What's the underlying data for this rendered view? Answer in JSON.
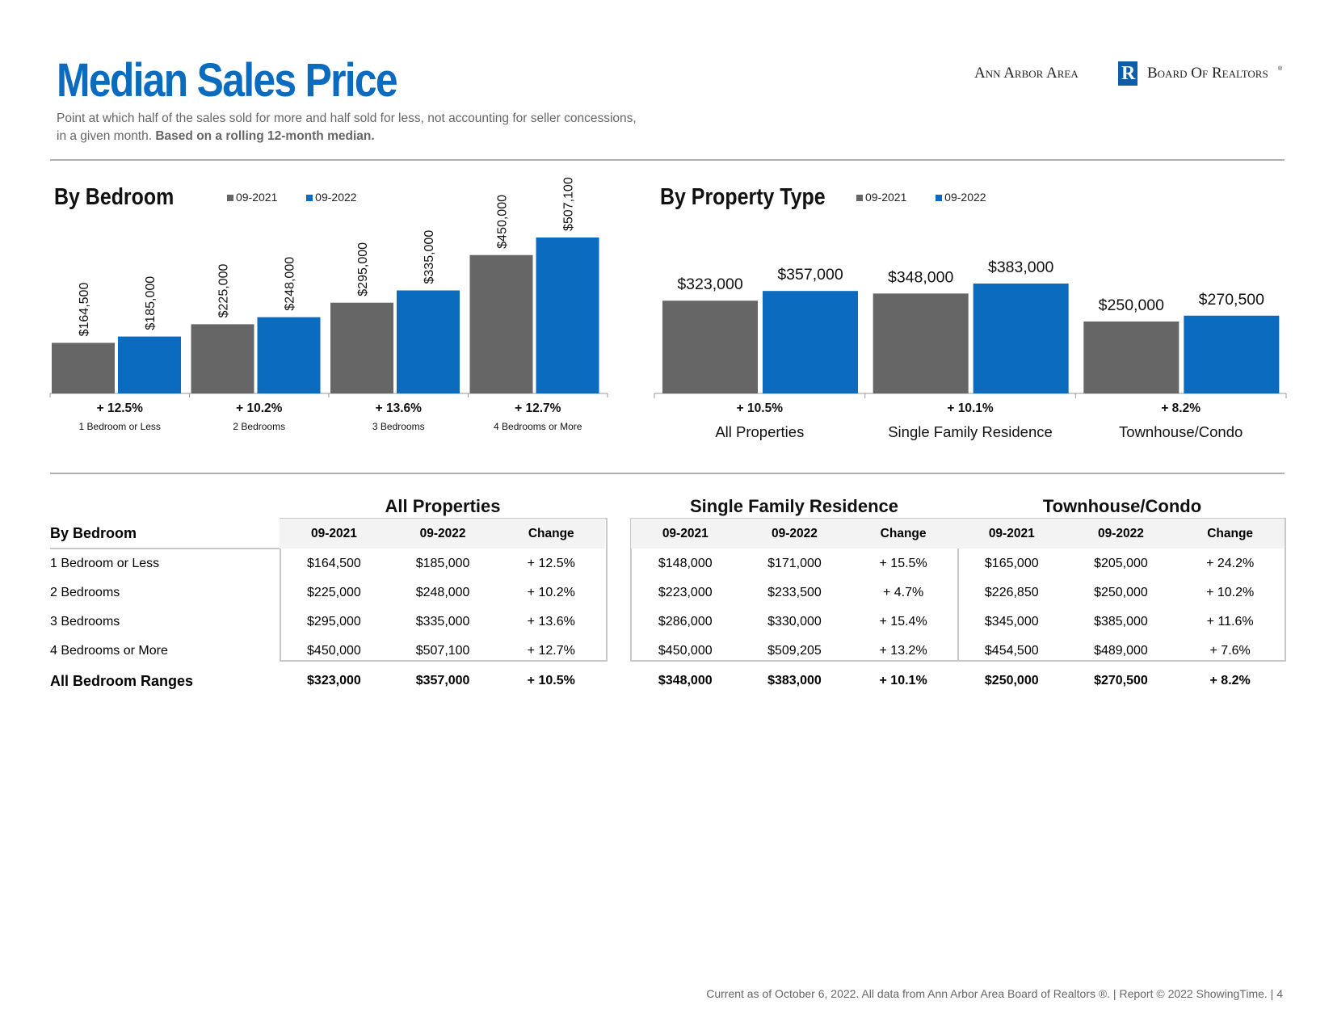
{
  "header": {
    "title": "Median Sales Price",
    "subtitle_line1": "Point at which half of the sales sold for more and half sold for less, not accounting for seller concessions,",
    "subtitle_line2_plain": "in a given month. ",
    "subtitle_line2_bold": "Based on a rolling 12-month median.",
    "logo_left": "Ann Arbor Area",
    "logo_right": "Board Of Realtors",
    "logo_mark": "R"
  },
  "colors": {
    "series_2021": "#666666",
    "series_2022": "#0b6bbf",
    "title": "#0b6bbf"
  },
  "sections": {
    "by_bedroom": "By Bedroom",
    "by_property_type": "By Property Type"
  },
  "legend": {
    "s1": "09-2021",
    "s2": "09-2022"
  },
  "chart_data": [
    {
      "type": "bar",
      "title": "By Bedroom",
      "categories": [
        "1 Bedroom or Less",
        "2 Bedrooms",
        "3 Bedrooms",
        "4 Bedrooms or More"
      ],
      "series": [
        {
          "name": "09-2021",
          "values": [
            164500,
            225000,
            295000,
            450000
          ]
        },
        {
          "name": "09-2022",
          "values": [
            185000,
            248000,
            335000,
            507100
          ]
        }
      ],
      "data_labels": [
        [
          "$164,500",
          "$225,000",
          "$295,000",
          "$450,000"
        ],
        [
          "$185,000",
          "$248,000",
          "$335,000",
          "$507,100"
        ]
      ],
      "changes": [
        "+ 12.5%",
        "+ 10.2%",
        "+ 13.6%",
        "+ 12.7%"
      ],
      "ylim": [
        0,
        1250000
      ],
      "legend_position": "top",
      "grid": false
    },
    {
      "type": "bar",
      "title": "By Property Type",
      "categories": [
        "All Properties",
        "Single Family Residence",
        "Townhouse/Condo"
      ],
      "series": [
        {
          "name": "09-2021",
          "values": [
            323000,
            348000,
            250000
          ]
        },
        {
          "name": "09-2022",
          "values": [
            357000,
            383000,
            270500
          ]
        }
      ],
      "data_labels": [
        [
          "$323,000",
          "$348,000",
          "$250,000"
        ],
        [
          "$357,000",
          "$383,000",
          "$270,500"
        ]
      ],
      "changes": [
        "+ 10.5%",
        "+ 10.1%",
        "+ 8.2%"
      ],
      "ylim": [
        250000,
        670000
      ],
      "legend_position": "top",
      "grid": false
    }
  ],
  "table": {
    "row_header": "By Bedroom",
    "groups": [
      "All Properties",
      "Single Family Residence",
      "Townhouse/Condo"
    ],
    "col_headers": [
      "09-2021",
      "09-2022",
      "Change"
    ],
    "rows": [
      {
        "label": "1 Bedroom or Less",
        "values": [
          "$164,500",
          "$185,000",
          "+ 12.5%",
          "$148,000",
          "$171,000",
          "+ 15.5%",
          "$165,000",
          "$205,000",
          "+ 24.2%"
        ]
      },
      {
        "label": "2 Bedrooms",
        "values": [
          "$225,000",
          "$248,000",
          "+ 10.2%",
          "$223,000",
          "$233,500",
          "+ 4.7%",
          "$226,850",
          "$250,000",
          "+ 10.2%"
        ]
      },
      {
        "label": "3 Bedrooms",
        "values": [
          "$295,000",
          "$335,000",
          "+ 13.6%",
          "$286,000",
          "$330,000",
          "+ 15.4%",
          "$345,000",
          "$385,000",
          "+ 11.6%"
        ]
      },
      {
        "label": "4 Bedrooms or More",
        "values": [
          "$450,000",
          "$507,100",
          "+ 12.7%",
          "$450,000",
          "$509,205",
          "+ 13.2%",
          "$454,500",
          "$489,000",
          "+ 7.6%"
        ]
      }
    ],
    "total": {
      "label": "All Bedroom Ranges",
      "values": [
        "$323,000",
        "$357,000",
        "+ 10.5%",
        "$348,000",
        "$383,000",
        "+ 10.1%",
        "$250,000",
        "$270,500",
        "+ 8.2%"
      ]
    }
  },
  "footer": "Current as of October 6, 2022. All data from Ann Arbor Area Board of Realtors ®.  |  Report © 2022 ShowingTime.  |  4"
}
